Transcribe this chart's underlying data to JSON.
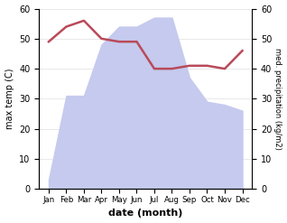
{
  "months": [
    "Jan",
    "Feb",
    "Mar",
    "Apr",
    "May",
    "Jun",
    "Jul",
    "Aug",
    "Sep",
    "Oct",
    "Nov",
    "Dec"
  ],
  "temperature": [
    49,
    54,
    56,
    50,
    49,
    49,
    40,
    40,
    41,
    41,
    40,
    46
  ],
  "precipitation": [
    3,
    31,
    31,
    48,
    54,
    54,
    57,
    57,
    37,
    29,
    28,
    26
  ],
  "temp_color": "#b94a5a",
  "precip_fill_color": "#c5caee",
  "ylabel_left": "max temp (C)",
  "ylabel_right": "med. precipitation (kg/m2)",
  "xlabel": "date (month)",
  "ylim": [
    0,
    60
  ],
  "yticks": [
    0,
    10,
    20,
    30,
    40,
    50,
    60
  ],
  "bg_color": "#ffffff",
  "grid_color": "#e0e0e0"
}
